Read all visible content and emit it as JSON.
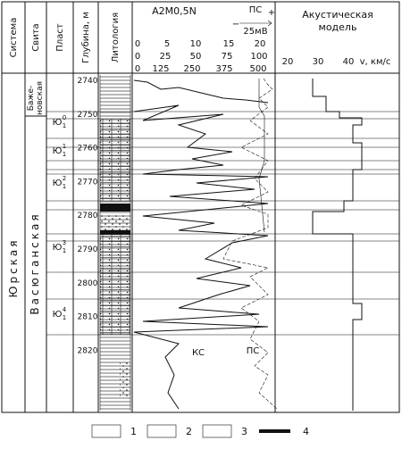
{
  "header": {
    "columns": [
      "Система",
      "Свита",
      "Пласт",
      "Глубина, м",
      "Литология"
    ],
    "log": {
      "title": "A2M0,5N",
      "sp_label": "ПС",
      "sp_minus": "−",
      "sp_plus": "+",
      "sp_scale": "25мВ",
      "scales": [
        [
          "0",
          "5",
          "10",
          "15",
          "20"
        ],
        [
          "0",
          "25",
          "50",
          "75",
          "100"
        ],
        [
          "0",
          "125",
          "250",
          "375",
          "500"
        ]
      ]
    },
    "acoustic": {
      "title_lines": [
        "Акустическая",
        "модель"
      ],
      "scale": [
        "20",
        "30",
        "40"
      ],
      "unit": "v, км/с"
    }
  },
  "system": "Юрская",
  "suites": {
    "bazhenov": [
      "Баже-",
      "новская"
    ],
    "vasyugan": "Васюганская"
  },
  "strata": [
    {
      "base": "Ю",
      "sup": "0",
      "sub": "1"
    },
    {
      "base": "Ю",
      "sup": "1",
      "sub": "1"
    },
    {
      "base": "Ю",
      "sup": "2",
      "sub": "1"
    },
    {
      "base": "Ю",
      "sup": "3",
      "sub": "1"
    },
    {
      "base": "Ю",
      "sup": "4",
      "sub": "1"
    }
  ],
  "depths": [
    "2740",
    "2750",
    "2760",
    "2770",
    "2780",
    "2790",
    "2800",
    "2810",
    "2820"
  ],
  "curve_labels": [
    "КС",
    "ПС"
  ],
  "legend": [
    "1",
    "2",
    "3",
    "4"
  ]
}
